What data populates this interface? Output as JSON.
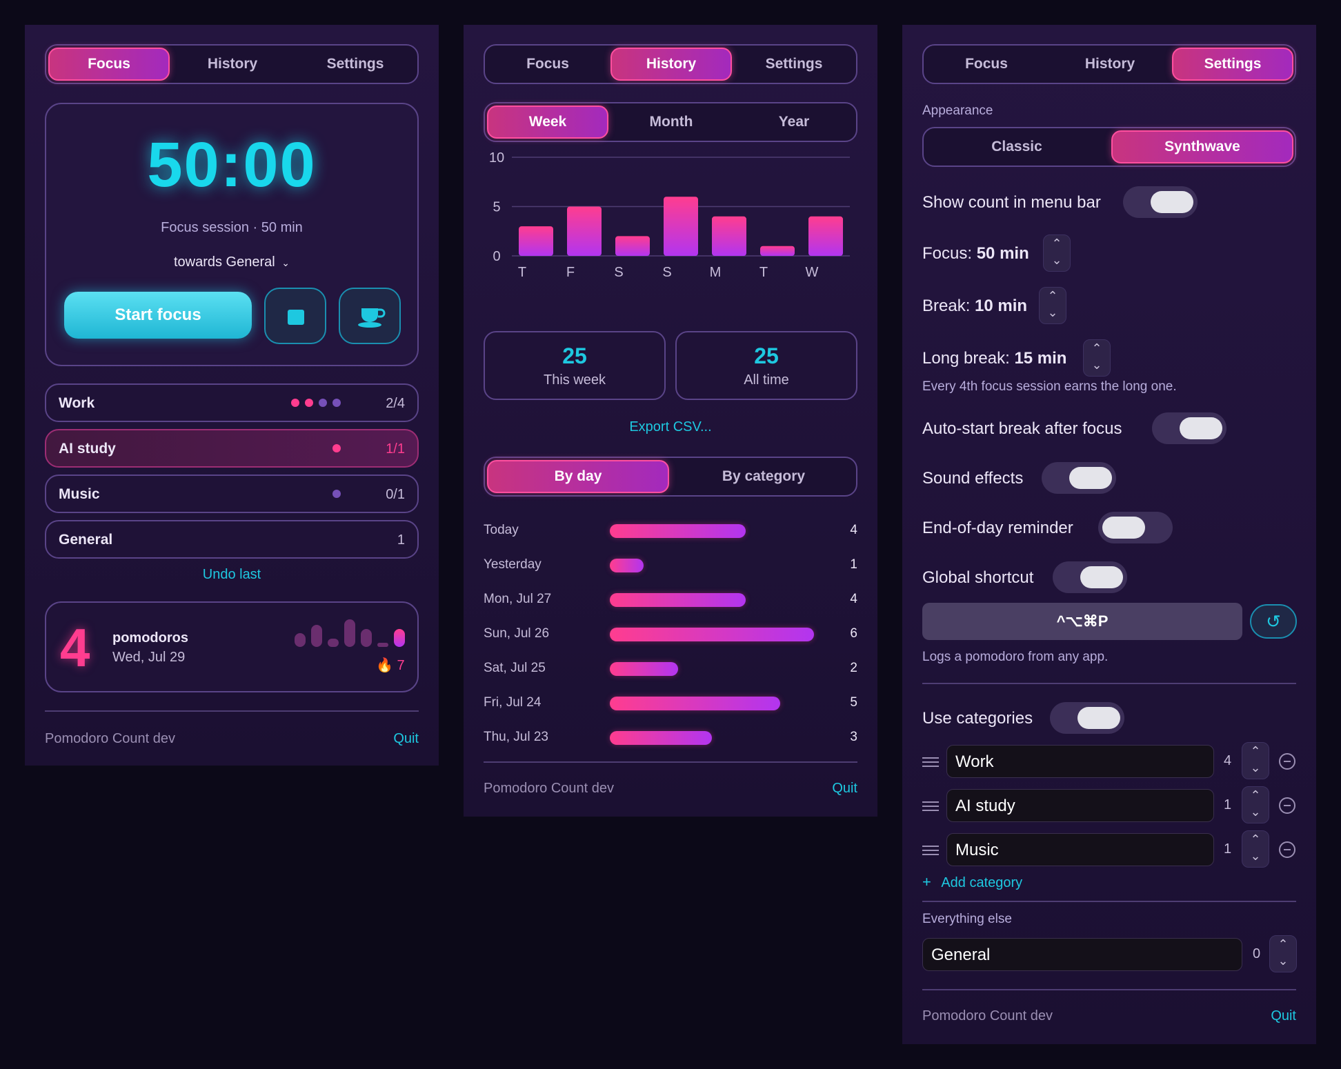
{
  "focus_panel": {
    "tabs": [
      "Focus",
      "History",
      "Settings"
    ],
    "timer": "50:00",
    "session_label": "Focus session · 50 min",
    "towards_label": "towards General",
    "start_label": "Start focus",
    "categories": [
      {
        "name": "Work",
        "count": "2/4"
      },
      {
        "name": "AI study",
        "count": "1/1"
      },
      {
        "name": "Music",
        "count": "0/1"
      },
      {
        "name": "General",
        "count": "1"
      }
    ],
    "undo_label": "Undo last",
    "summary": {
      "count": "4",
      "unit": "pomodoros",
      "date": "Wed, Jul 29",
      "streak": "7"
    },
    "footer_app": "Pomodoro Count dev",
    "footer_quit": "Quit"
  },
  "history_panel": {
    "tabs": [
      "Focus",
      "History",
      "Settings"
    ],
    "ranges": [
      "Week",
      "Month",
      "Year"
    ],
    "chart_data": {
      "type": "bar",
      "categories": [
        "T",
        "F",
        "S",
        "S",
        "M",
        "T",
        "W"
      ],
      "values": [
        3,
        5,
        2,
        6,
        4,
        1,
        4
      ],
      "ylim": [
        0,
        10
      ],
      "yticks": [
        "10",
        "5",
        "0"
      ]
    },
    "stats": [
      {
        "value": "25",
        "label": "This week"
      },
      {
        "value": "25",
        "label": "All time"
      }
    ],
    "export_label": "Export CSV...",
    "views": [
      "By day",
      "By category"
    ],
    "days": [
      {
        "label": "Today",
        "value": 4
      },
      {
        "label": "Yesterday",
        "value": 1
      },
      {
        "label": "Mon, Jul 27",
        "value": 4
      },
      {
        "label": "Sun, Jul 26",
        "value": 6
      },
      {
        "label": "Sat, Jul 25",
        "value": 2
      },
      {
        "label": "Fri, Jul 24",
        "value": 5
      },
      {
        "label": "Thu, Jul 23",
        "value": 3
      }
    ],
    "footer_app": "Pomodoro Count dev",
    "footer_quit": "Quit"
  },
  "settings_panel": {
    "tabs": [
      "Focus",
      "History",
      "Settings"
    ],
    "appearance_label": "Appearance",
    "themes": [
      "Classic",
      "Synthwave"
    ],
    "show_count_label": "Show count in menu bar",
    "focus_prefix": "Focus: ",
    "focus_value": "50 min",
    "break_prefix": "Break: ",
    "break_value": "10 min",
    "long_prefix": "Long break: ",
    "long_value": "15 min",
    "long_note": "Every 4th focus session earns the long one.",
    "autostart_label": "Auto-start break after focus",
    "sound_label": "Sound effects",
    "reminder_label": "End-of-day reminder",
    "shortcut_label": "Global shortcut",
    "shortcut_keys": "^⌥⌘P",
    "shortcut_note": "Logs a pomodoro from any app.",
    "use_categories_label": "Use categories",
    "categories": [
      {
        "name": "Work",
        "target": "4"
      },
      {
        "name": "AI study",
        "target": "1"
      },
      {
        "name": "Music",
        "target": "1"
      }
    ],
    "add_category_label": "Add category",
    "everything_else_label": "Everything else",
    "general_name": "General",
    "general_target": "0",
    "footer_app": "Pomodoro Count dev",
    "footer_quit": "Quit"
  },
  "colors": {
    "accent_pink": "#ff3d8f",
    "accent_purple": "#b235f0",
    "accent_cyan": "#1ec8e0",
    "panel_bg": "#24153f",
    "page_bg": "#0c0918"
  }
}
